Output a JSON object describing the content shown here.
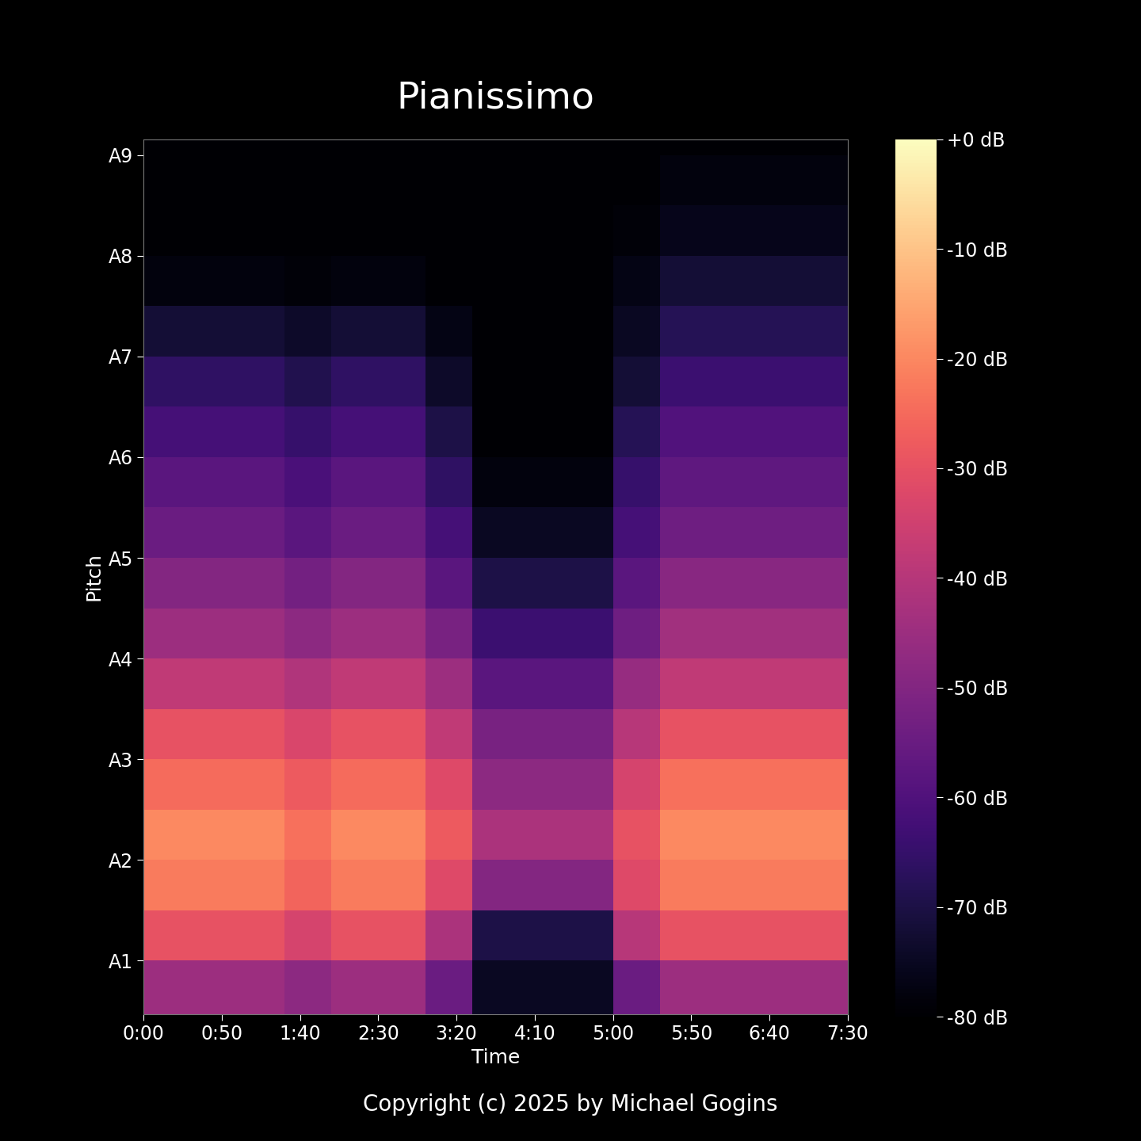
{
  "chart_data": {
    "type": "spectrogram",
    "title": "Pianissimo",
    "x_label": "Time",
    "y_label": "Pitch",
    "footer": "Copyright (c) 2025 by Michael Gogins",
    "log": "y",
    "xlim": [
      0,
      450
    ],
    "xticks": [
      {
        "value": 0,
        "label": "0:00"
      },
      {
        "value": 50,
        "label": "0:50"
      },
      {
        "value": 100,
        "label": "1:40"
      },
      {
        "value": 150,
        "label": "2:30"
      },
      {
        "value": 200,
        "label": "3:20"
      },
      {
        "value": 250,
        "label": "4:10"
      },
      {
        "value": 300,
        "label": "5:00"
      },
      {
        "value": 350,
        "label": "5:50"
      },
      {
        "value": 400,
        "label": "6:40"
      },
      {
        "value": 450,
        "label": "7:30"
      }
    ],
    "ylim": [
      38,
      15700
    ],
    "yticks": [
      {
        "value": 55,
        "label": "A1"
      },
      {
        "value": 110,
        "label": "A2"
      },
      {
        "value": 220,
        "label": "A3"
      },
      {
        "value": 440,
        "label": "A4"
      },
      {
        "value": 880,
        "label": "A5"
      },
      {
        "value": 1760,
        "label": "A6"
      },
      {
        "value": 3520,
        "label": "A7"
      },
      {
        "value": 7040,
        "label": "A8"
      },
      {
        "value": 14080,
        "label": "A9"
      }
    ],
    "x_bins": [
      0,
      30,
      60,
      90,
      120,
      150,
      180,
      210,
      240,
      270,
      300,
      330,
      360,
      390,
      420,
      450
    ],
    "y_bins": [
      38,
      55,
      77.8,
      110,
      155.6,
      220,
      311,
      440,
      622,
      880,
      1245,
      1760,
      2489,
      3520,
      4978,
      7040,
      9956,
      14080,
      15700
    ],
    "cells": [
      [
        -45,
        -45,
        -45,
        -48,
        -45,
        -45,
        -55,
        -75,
        -75,
        -75,
        -55,
        -45,
        -45,
        -45,
        -45
      ],
      [
        -30,
        -30,
        -30,
        -34,
        -30,
        -30,
        -42,
        -70,
        -70,
        -70,
        -40,
        -30,
        -30,
        -30,
        -30
      ],
      [
        -22,
        -22,
        -22,
        -26,
        -22,
        -22,
        -32,
        -50,
        -50,
        -50,
        -32,
        -22,
        -22,
        -22,
        -22
      ],
      [
        -20,
        -20,
        -20,
        -24,
        -20,
        -20,
        -28,
        -42,
        -42,
        -42,
        -30,
        -20,
        -20,
        -20,
        -20
      ],
      [
        -25,
        -25,
        -25,
        -28,
        -25,
        -25,
        -32,
        -48,
        -48,
        -48,
        -34,
        -24,
        -24,
        -24,
        -24
      ],
      [
        -30,
        -30,
        -30,
        -33,
        -30,
        -30,
        -38,
        -52,
        -52,
        -52,
        -40,
        -30,
        -30,
        -30,
        -30
      ],
      [
        -38,
        -38,
        -38,
        -41,
        -38,
        -38,
        -45,
        -58,
        -58,
        -58,
        -46,
        -38,
        -38,
        -38,
        -38
      ],
      [
        -45,
        -45,
        -45,
        -48,
        -45,
        -45,
        -52,
        -64,
        -64,
        -64,
        -54,
        -44,
        -44,
        -44,
        -44
      ],
      [
        -50,
        -50,
        -50,
        -53,
        -50,
        -50,
        -58,
        -70,
        -70,
        -70,
        -58,
        -49,
        -49,
        -49,
        -49
      ],
      [
        -55,
        -55,
        -55,
        -58,
        -55,
        -55,
        -62,
        -75,
        -75,
        -75,
        -62,
        -54,
        -54,
        -54,
        -54
      ],
      [
        -58,
        -58,
        -58,
        -61,
        -58,
        -58,
        -66,
        -78,
        -78,
        -78,
        -65,
        -57,
        -57,
        -57,
        -57
      ],
      [
        -62,
        -62,
        -62,
        -65,
        -62,
        -62,
        -70,
        -80,
        -80,
        -80,
        -68,
        -60,
        -60,
        -60,
        -60
      ],
      [
        -66,
        -66,
        -66,
        -69,
        -66,
        -66,
        -74,
        -80,
        -80,
        -80,
        -72,
        -64,
        -64,
        -64,
        -64
      ],
      [
        -72,
        -72,
        -72,
        -74,
        -72,
        -72,
        -77,
        -80,
        -80,
        -80,
        -75,
        -68,
        -68,
        -68,
        -68
      ],
      [
        -78,
        -78,
        -78,
        -79,
        -78,
        -78,
        -80,
        -80,
        -80,
        -80,
        -77,
        -72,
        -72,
        -72,
        -72
      ],
      [
        -80,
        -80,
        -80,
        -80,
        -80,
        -80,
        -80,
        -80,
        -80,
        -80,
        -79,
        -76,
        -76,
        -76,
        -76
      ],
      [
        -80,
        -80,
        -80,
        -80,
        -80,
        -80,
        -80,
        -80,
        -80,
        -80,
        -80,
        -78,
        -78,
        -78,
        -78
      ],
      [
        -80,
        -80,
        -80,
        -80,
        -80,
        -80,
        -80,
        -80,
        -80,
        -80,
        -80,
        -80,
        -80,
        -80,
        -80
      ]
    ],
    "color": "magma",
    "colorbar": {
      "range": [
        -80,
        0
      ],
      "ticks": [
        {
          "value": 0,
          "label": "+0 dB"
        },
        {
          "value": -10,
          "label": "-10 dB"
        },
        {
          "value": -20,
          "label": "-20 dB"
        },
        {
          "value": -30,
          "label": "-30 dB"
        },
        {
          "value": -40,
          "label": "-40 dB"
        },
        {
          "value": -50,
          "label": "-50 dB"
        },
        {
          "value": -60,
          "label": "-60 dB"
        },
        {
          "value": -70,
          "label": "-70 dB"
        },
        {
          "value": -80,
          "label": "-80 dB"
        }
      ]
    }
  }
}
